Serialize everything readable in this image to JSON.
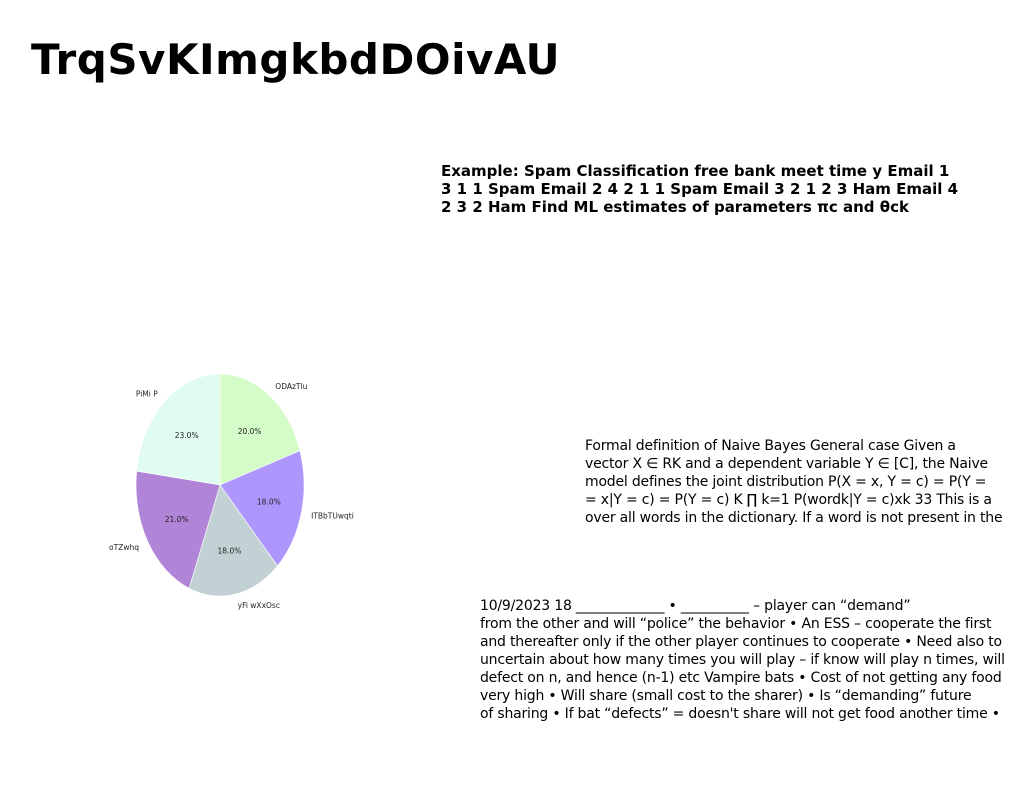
{
  "title": "TrqSvKImgkbdDOivAU",
  "spam_example": [
    "Example: Spam Classification free bank meet time y Email 1",
    "3 1 1 Spam Email 2 4 2 1 1 Spam Email 3 2 1 2 3 Ham Email 4",
    "2 3 2 Ham Find ML estimates of parameters πc and θck"
  ],
  "naive_bayes": [
    "Formal definition of Naive Bayes General case Given a",
    "vector X ∈ RK and a dependent variable Y ∈ [C], the Naive",
    "model defines the joint distribution P(X = x, Y = c) = P(Y =",
    "= x|Y = c) = P(Y = c) K ∏ k=1 P(wordk|Y = c)xk 33 This is a",
    "over all words in the dictionary. If a word is not present in the"
  ],
  "ess_notes": [
    "10/9/2023 18 _____________ • __________ – player can “demand”",
    "from the other  and will “police” the behavior • An ESS – cooperate the first",
    "and thereafter only if the other player continues to cooperate • Need also to",
    "uncertain about how many times you will play – if know will play n times, will",
    "defect on n, and hence (n-1) etc Vampire bats • Cost of not getting any food",
    "very  high • Will share (small cost to the sharer) • Is “demanding” future",
    "of sharing • If bat “defects” = doesn't share will not get food another time •"
  ],
  "chart_data": {
    "type": "pie",
    "start_angle_deg": 90,
    "direction": "clockwise",
    "slices": [
      {
        "label": "ODAzTlu",
        "value": 20.0,
        "pct_label": "20.0%",
        "color": "#d4fcc8"
      },
      {
        "label": "ITBbTUwqti",
        "value": 18.0,
        "pct_label": "18.0%",
        "color": "#ad96fc"
      },
      {
        "label": "yFi wXxOsc",
        "value": 18.0,
        "pct_label": "18.0%",
        "color": "#c2d2d4"
      },
      {
        "label": "oTZwhq",
        "value": 21.0,
        "pct_label": "21.0%",
        "color": "#b085d8"
      },
      {
        "label": "PiMi P",
        "value": 23.0,
        "pct_label": "23.0%",
        "color": "#e0fbf0"
      }
    ]
  }
}
